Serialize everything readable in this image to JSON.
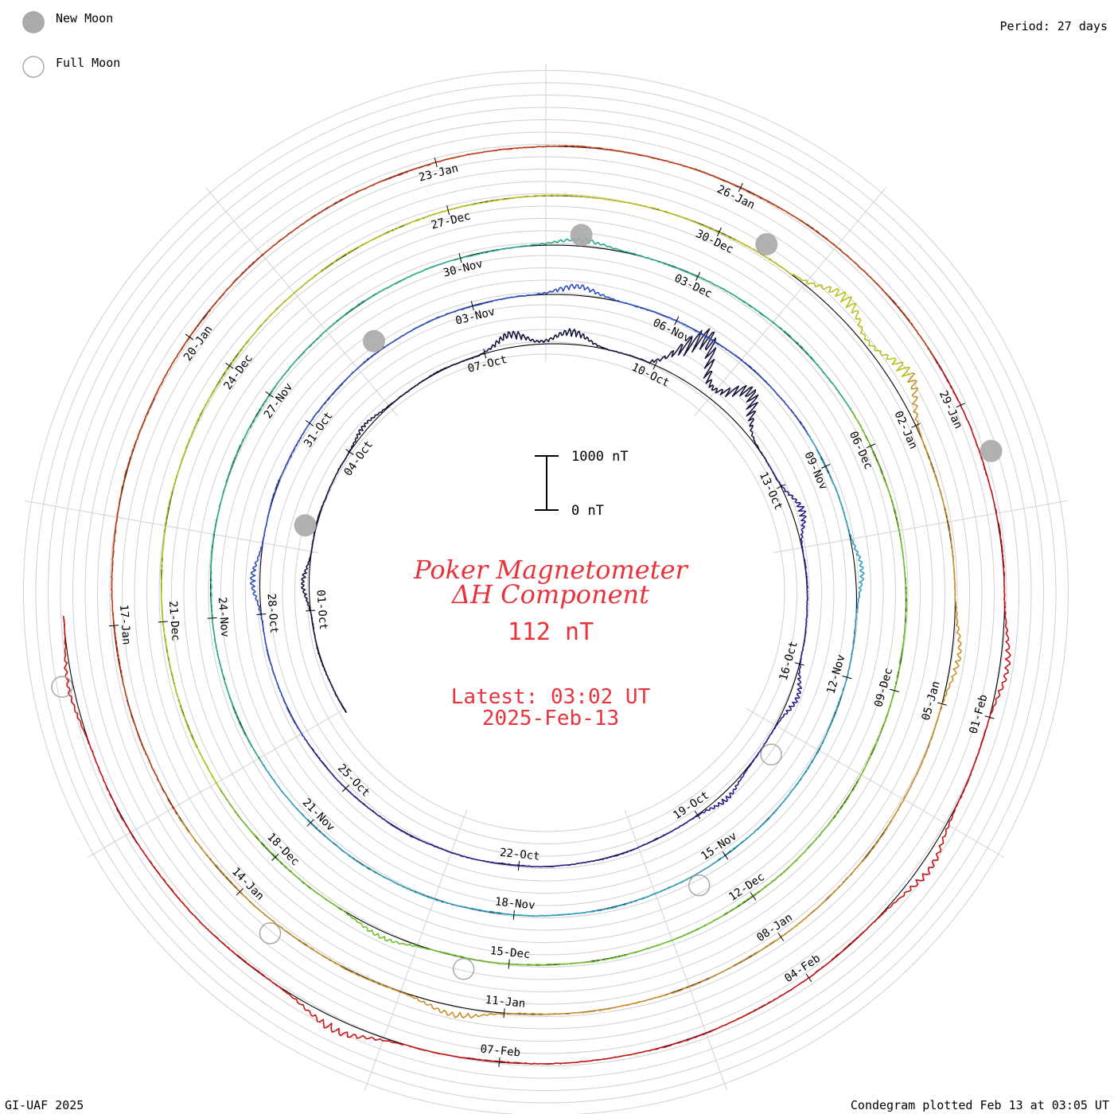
{
  "legend": {
    "new_moon": "New Moon",
    "full_moon": "Full Moon"
  },
  "period": "Period: 27 days",
  "footer": {
    "left": "GI-UAF 2025",
    "right": "Condegram plotted Feb 13 at 03:05 UT"
  },
  "chart_data": {
    "type": "condegram-spiral",
    "title": "Poker Magnetometer",
    "subtitle": "ΔH Component",
    "current_value": "112 nT",
    "latest_line1": "Latest: 03:02 UT",
    "latest_line2": "2025-Feb-13",
    "scale_bar": {
      "top_label": "1000 nT",
      "bottom_label": "0 nT"
    },
    "start_date": "2024-09-29",
    "end_date": "2025-02-13",
    "period_days": 27,
    "date_labels": [
      "01-Oct",
      "04-Oct",
      "07-Oct",
      "10-Oct",
      "13-Oct",
      "16-Oct",
      "19-Oct",
      "22-Oct",
      "25-Oct",
      "28-Oct",
      "31-Oct",
      "03-Nov",
      "06-Nov",
      "09-Nov",
      "12-Nov",
      "15-Nov",
      "18-Nov",
      "21-Nov",
      "24-Nov",
      "27-Nov",
      "30-Nov",
      "03-Dec",
      "06-Dec",
      "09-Dec",
      "12-Dec",
      "15-Dec",
      "18-Dec",
      "21-Dec",
      "24-Dec",
      "27-Dec",
      "30-Dec",
      "02-Jan",
      "05-Jan",
      "08-Jan",
      "11-Jan",
      "14-Jan",
      "17-Jan",
      "20-Jan",
      "23-Jan",
      "26-Jan",
      "29-Jan",
      "01-Feb",
      "04-Feb",
      "07-Feb"
    ],
    "new_moons": [
      "2024-10-02",
      "2024-11-01",
      "2024-12-01",
      "2024-12-30",
      "2025-01-29"
    ],
    "full_moons": [
      "2024-10-17",
      "2024-11-15",
      "2024-12-15",
      "2025-01-13",
      "2025-02-12"
    ],
    "colors": [
      "#14143c",
      "#2b1e8c",
      "#2f4ec2",
      "#2f9ec0",
      "#27ab8c",
      "#6cc02a",
      "#b7c01c",
      "#c8902a",
      "#c03c14",
      "#c81414"
    ],
    "disturbances": [
      {
        "date": "2024-10-01",
        "peak_nT": 150
      },
      {
        "date": "2024-10-04",
        "peak_nT": 120
      },
      {
        "date": "2024-10-07",
        "peak_nT": 300
      },
      {
        "date": "2024-10-08",
        "peak_nT": 280
      },
      {
        "date": "2024-10-10",
        "peak_nT": 1100
      },
      {
        "date": "2024-10-11",
        "peak_nT": 700
      },
      {
        "date": "2024-10-13",
        "peak_nT": 250
      },
      {
        "date": "2024-10-16",
        "peak_nT": 200
      },
      {
        "date": "2024-10-18",
        "peak_nT": 160
      },
      {
        "date": "2024-10-28",
        "peak_nT": 180
      },
      {
        "date": "2024-11-04",
        "peak_nT": 200
      },
      {
        "date": "2024-11-10",
        "peak_nT": 150
      },
      {
        "date": "2024-12-01",
        "peak_nT": 150
      },
      {
        "date": "2024-12-16",
        "peak_nT": 130
      },
      {
        "date": "2024-12-31",
        "peak_nT": 400
      },
      {
        "date": "2025-01-01",
        "peak_nT": 450
      },
      {
        "date": "2025-01-04",
        "peak_nT": 180
      },
      {
        "date": "2025-01-11",
        "peak_nT": 200
      },
      {
        "date": "2025-01-31",
        "peak_nT": 180
      },
      {
        "date": "2025-02-02",
        "peak_nT": 220
      },
      {
        "date": "2025-02-08",
        "peak_nT": 260
      },
      {
        "date": "2025-02-12",
        "peak_nT": 120
      }
    ]
  }
}
